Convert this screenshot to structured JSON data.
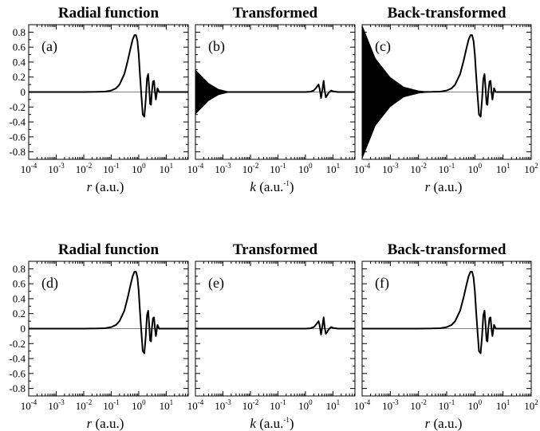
{
  "chart_data": [
    {
      "type": "line",
      "panel_label": "(a)",
      "title": "Radial function",
      "xlabel": {
        "var": "r",
        "unit": "(a.u.)",
        "sup": ""
      },
      "xscale": "log",
      "xlim_exp": [
        -4,
        1.8
      ],
      "xtick_exp": [
        -4,
        -3,
        -2,
        -1,
        0,
        1
      ],
      "xtick_base": "10",
      "ylim": [
        -0.9,
        0.9
      ],
      "ytick_labels": [
        "0.8",
        "0.6",
        "0.4",
        "0.2",
        "0",
        "-0.2",
        "-0.4",
        "-0.6",
        "-0.8"
      ],
      "ytick_values": [
        0.8,
        0.6,
        0.4,
        0.2,
        0,
        -0.2,
        -0.4,
        -0.6,
        -0.8
      ],
      "show_y_labels": true,
      "grid": false,
      "zero_line": true,
      "series": [
        {
          "x": [
            0.0001,
            0.01,
            0.03,
            0.06,
            0.1,
            0.15,
            0.2,
            0.3,
            0.4,
            0.5,
            0.6,
            0.7,
            0.8,
            0.9,
            1.0,
            1.1,
            1.25,
            1.4,
            1.6,
            1.8,
            2.0,
            2.2,
            2.4,
            2.6,
            2.8,
            3.0,
            3.3,
            3.6,
            3.9,
            4.2,
            4.5,
            4.8,
            5.5,
            7,
            10,
            20,
            63
          ],
          "y": [
            0,
            0,
            0.002,
            0.006,
            0.02,
            0.05,
            0.1,
            0.24,
            0.42,
            0.58,
            0.7,
            0.76,
            0.76,
            0.68,
            0.5,
            0.25,
            -0.05,
            -0.3,
            -0.33,
            -0.1,
            0.18,
            0.24,
            0.05,
            -0.16,
            -0.17,
            0.0,
            0.14,
            0.15,
            0.0,
            -0.1,
            -0.02,
            0.05,
            0.0,
            0,
            0,
            0,
            0
          ]
        }
      ]
    },
    {
      "type": "line",
      "panel_label": "(b)",
      "title": "Transformed",
      "xlabel": {
        "var": "k",
        "unit": "(a.u.",
        "sup": "-1",
        "unit_close": ")"
      },
      "xscale": "log",
      "xlim_exp": [
        -4,
        1.8
      ],
      "xtick_exp": [
        -4,
        -3,
        -2,
        -1,
        0,
        1
      ],
      "xtick_base": "10",
      "ylim": [
        -0.9,
        0.9
      ],
      "show_y_labels": false,
      "grid": false,
      "zero_line": true,
      "noise_envelope": {
        "x": [
          0.0001,
          0.0003,
          0.0007,
          0.0015,
          0.003
        ],
        "amplitude": [
          0.3,
          0.12,
          0.04,
          0.01,
          0.0
        ]
      },
      "series": [
        {
          "x": [
            0.0001,
            0.01,
            1.0,
            1.5,
            2.0,
            2.5,
            3.0,
            3.3,
            3.7,
            4.2,
            4.6,
            5.0,
            5.5,
            6.0,
            7.0,
            8.5,
            10,
            15,
            63
          ],
          "y": [
            0,
            0,
            0,
            0.004,
            0.02,
            0.06,
            0.1,
            0.04,
            -0.08,
            0.05,
            0.15,
            0.02,
            -0.07,
            -0.05,
            -0.01,
            0.02,
            0.01,
            0,
            0
          ]
        }
      ]
    },
    {
      "type": "line",
      "panel_label": "(c)",
      "title": "Back-transformed",
      "xlabel": {
        "var": "r",
        "unit": "(a.u.)",
        "sup": ""
      },
      "xscale": "log",
      "xlim_exp": [
        -4,
        2
      ],
      "xtick_exp": [
        -4,
        -3,
        -2,
        -1,
        0,
        1,
        2
      ],
      "xtick_base": "10",
      "ylim": [
        -0.9,
        0.9
      ],
      "show_y_labels": false,
      "grid": false,
      "zero_line": true,
      "noise_envelope": {
        "x": [
          0.0001,
          0.0003,
          0.001,
          0.003,
          0.01,
          0.03
        ],
        "amplitude": [
          0.9,
          0.45,
          0.2,
          0.07,
          0.02,
          0.0
        ]
      },
      "series": [
        {
          "x": [
            0.0001,
            0.01,
            0.03,
            0.06,
            0.1,
            0.15,
            0.2,
            0.3,
            0.4,
            0.5,
            0.6,
            0.7,
            0.8,
            0.9,
            1.0,
            1.1,
            1.25,
            1.4,
            1.6,
            1.8,
            2.0,
            2.2,
            2.4,
            2.6,
            2.8,
            3.0,
            3.3,
            3.6,
            3.9,
            4.2,
            4.5,
            4.8,
            5.5,
            7,
            10,
            20,
            100
          ],
          "y": [
            0,
            0,
            0.002,
            0.006,
            0.02,
            0.05,
            0.1,
            0.24,
            0.42,
            0.58,
            0.7,
            0.76,
            0.76,
            0.68,
            0.5,
            0.25,
            -0.05,
            -0.3,
            -0.33,
            -0.1,
            0.18,
            0.24,
            0.05,
            -0.16,
            -0.17,
            0.0,
            0.14,
            0.15,
            0.0,
            -0.1,
            -0.02,
            0.05,
            0.0,
            0,
            0,
            0,
            0
          ]
        }
      ]
    },
    {
      "type": "line",
      "panel_label": "(d)",
      "title": "Radial function",
      "xlabel": {
        "var": "r",
        "unit": "(a.u.)",
        "sup": ""
      },
      "xscale": "log",
      "xlim_exp": [
        -4,
        1.8
      ],
      "xtick_exp": [
        -4,
        -3,
        -2,
        -1,
        0,
        1
      ],
      "xtick_base": "10",
      "ylim": [
        -0.9,
        0.9
      ],
      "ytick_labels": [
        "0.8",
        "0.6",
        "0.4",
        "0.2",
        "0",
        "-0.2",
        "-0.4",
        "-0.6",
        "-0.8"
      ],
      "ytick_values": [
        0.8,
        0.6,
        0.4,
        0.2,
        0,
        -0.2,
        -0.4,
        -0.6,
        -0.8
      ],
      "show_y_labels": true,
      "grid": false,
      "zero_line": true,
      "series": [
        {
          "x": [
            0.0001,
            0.01,
            0.03,
            0.06,
            0.1,
            0.15,
            0.2,
            0.3,
            0.4,
            0.5,
            0.6,
            0.7,
            0.8,
            0.9,
            1.0,
            1.1,
            1.25,
            1.4,
            1.6,
            1.8,
            2.0,
            2.2,
            2.4,
            2.6,
            2.8,
            3.0,
            3.3,
            3.6,
            3.9,
            4.2,
            4.5,
            4.8,
            5.5,
            7,
            10,
            20,
            63
          ],
          "y": [
            0,
            0,
            0.002,
            0.006,
            0.02,
            0.05,
            0.1,
            0.24,
            0.42,
            0.58,
            0.7,
            0.76,
            0.76,
            0.68,
            0.5,
            0.25,
            -0.05,
            -0.3,
            -0.33,
            -0.1,
            0.18,
            0.24,
            0.05,
            -0.16,
            -0.17,
            0.0,
            0.14,
            0.15,
            0.0,
            -0.1,
            -0.02,
            0.05,
            0.0,
            0,
            0,
            0,
            0
          ]
        }
      ]
    },
    {
      "type": "line",
      "panel_label": "(e)",
      "title": "Transformed",
      "xlabel": {
        "var": "k",
        "unit": "(a.u.",
        "sup": "-1",
        "unit_close": ")"
      },
      "xscale": "log",
      "xlim_exp": [
        -4,
        1.8
      ],
      "xtick_exp": [
        -4,
        -3,
        -2,
        -1,
        0,
        1
      ],
      "xtick_base": "10",
      "ylim": [
        -0.9,
        0.9
      ],
      "show_y_labels": false,
      "grid": false,
      "zero_line": true,
      "series": [
        {
          "x": [
            0.0001,
            0.01,
            1.0,
            1.5,
            2.0,
            2.5,
            3.0,
            3.3,
            3.7,
            4.2,
            4.6,
            5.0,
            5.5,
            6.0,
            7.0,
            8.5,
            10,
            15,
            63
          ],
          "y": [
            0,
            0,
            0,
            0.004,
            0.02,
            0.06,
            0.1,
            0.04,
            -0.08,
            0.05,
            0.15,
            0.02,
            -0.07,
            -0.05,
            -0.01,
            0.02,
            0.01,
            0,
            0
          ]
        }
      ]
    },
    {
      "type": "line",
      "panel_label": "(f)",
      "title": "Back-transformed",
      "xlabel": {
        "var": "r",
        "unit": "(a.u.)",
        "sup": ""
      },
      "xscale": "log",
      "xlim_exp": [
        -4,
        2
      ],
      "xtick_exp": [
        -4,
        -3,
        -2,
        -1,
        0,
        1,
        2
      ],
      "xtick_base": "10",
      "ylim": [
        -0.9,
        0.9
      ],
      "show_y_labels": false,
      "grid": false,
      "zero_line": true,
      "series": [
        {
          "x": [
            0.0001,
            0.01,
            0.03,
            0.06,
            0.1,
            0.15,
            0.2,
            0.3,
            0.4,
            0.5,
            0.6,
            0.7,
            0.8,
            0.9,
            1.0,
            1.1,
            1.25,
            1.4,
            1.6,
            1.8,
            2.0,
            2.2,
            2.4,
            2.6,
            2.8,
            3.0,
            3.3,
            3.6,
            3.9,
            4.2,
            4.5,
            4.8,
            5.5,
            7,
            10,
            20,
            100
          ],
          "y": [
            0,
            0,
            0.002,
            0.006,
            0.02,
            0.05,
            0.1,
            0.24,
            0.42,
            0.58,
            0.7,
            0.76,
            0.76,
            0.68,
            0.5,
            0.25,
            -0.05,
            -0.3,
            -0.33,
            -0.1,
            0.18,
            0.24,
            0.05,
            -0.16,
            -0.17,
            0.0,
            0.14,
            0.15,
            0.0,
            -0.1,
            -0.02,
            0.05,
            0.0,
            0,
            0,
            0,
            0
          ]
        }
      ]
    }
  ]
}
